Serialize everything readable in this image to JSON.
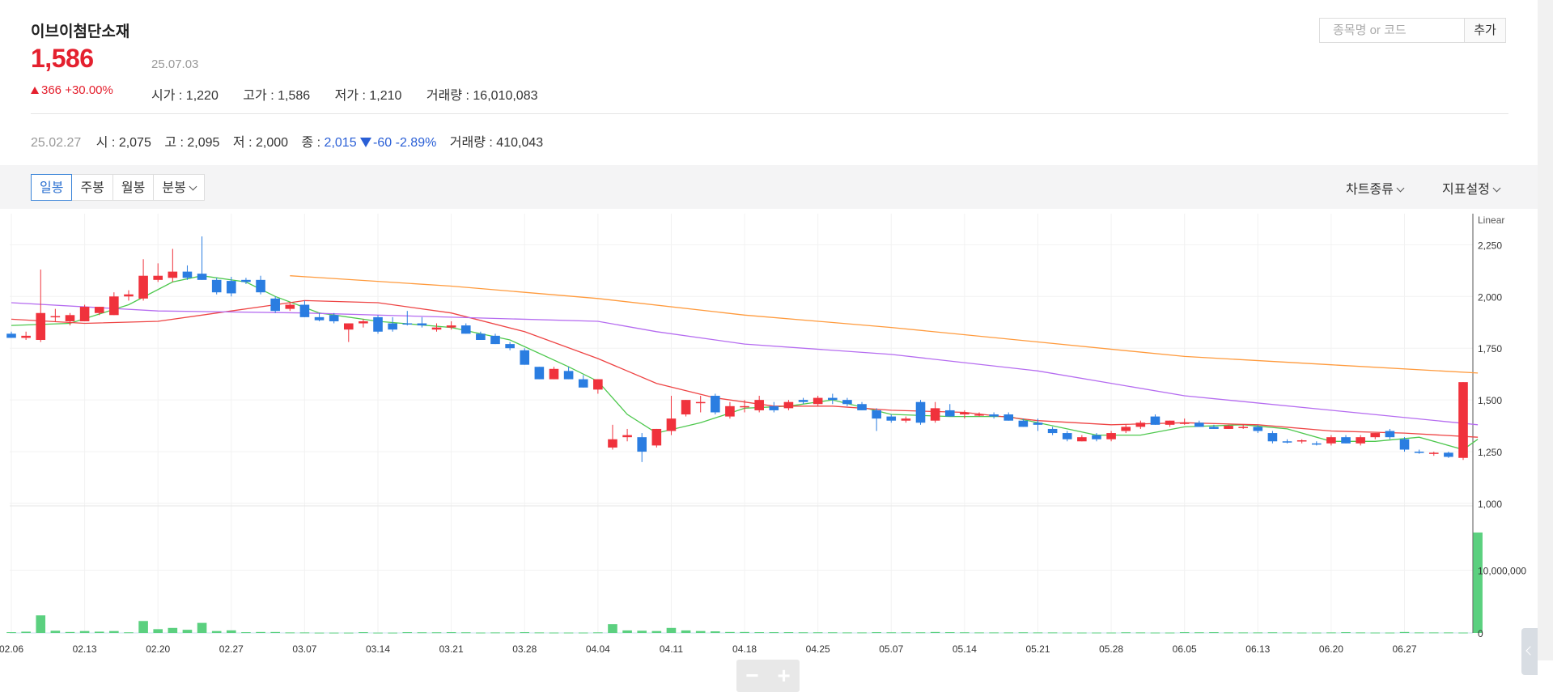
{
  "stock": {
    "name": "이브이첨단소재",
    "price": "1,586",
    "date": "25.07.03",
    "change_amount": "366",
    "change_pct": "+30.00%",
    "open_label": "시가",
    "open": "1,220",
    "high_label": "고가",
    "high": "1,586",
    "low_label": "저가",
    "low": "1,210",
    "volume_label": "거래량",
    "volume": "16,010,083"
  },
  "search": {
    "placeholder": "종목명 or 코드",
    "add_label": "추가"
  },
  "hover_info": {
    "date": "25.02.27",
    "open_label": "시",
    "open": "2,075",
    "high_label": "고",
    "high": "2,095",
    "low_label": "저",
    "low": "2,000",
    "close_label": "종",
    "close": "2,015",
    "change": "-60",
    "change_pct": "-2.89%",
    "volume_label": "거래량",
    "volume": "410,043"
  },
  "toolbar": {
    "tabs": [
      "일봉",
      "주봉",
      "월봉",
      "분봉"
    ],
    "active_tab": "일봉",
    "chart_type_label": "차트종류",
    "indicator_label": "지표설정"
  },
  "colors": {
    "up": "#f0323c",
    "down": "#2a7de1",
    "volume": "#5bd07f",
    "ma5": "#4ec84e",
    "ma20": "#ee4444",
    "ma60": "#b56cf0",
    "ma120": "#ff9a3c"
  },
  "chart_data": {
    "type": "candlestick",
    "scale_label": "Linear",
    "ylim": [
      1000,
      2400
    ],
    "y_ticks": [
      "2,250",
      "2,000",
      "1,750",
      "1,500",
      "1,250",
      "1,000"
    ],
    "volume_ticks": [
      "10,000,000",
      "0"
    ],
    "volume_max": 20000000,
    "x_tick_labels": [
      "02.06",
      "02.13",
      "02.20",
      "02.27",
      "03.07",
      "03.14",
      "03.21",
      "03.28",
      "04.04",
      "04.11",
      "04.18",
      "04.25",
      "05.07",
      "05.14",
      "05.21",
      "05.28",
      "06.05",
      "06.13",
      "06.20",
      "06.27"
    ],
    "candles": [
      {
        "d": "02.06",
        "o": 1820,
        "h": 1830,
        "l": 1800,
        "c": 1800
      },
      {
        "d": "02.07",
        "o": 1800,
        "h": 1830,
        "l": 1790,
        "c": 1810
      },
      {
        "d": "02.10",
        "o": 1790,
        "h": 2130,
        "l": 1780,
        "c": 1920
      },
      {
        "d": "02.11",
        "o": 1900,
        "h": 1940,
        "l": 1880,
        "c": 1905
      },
      {
        "d": "02.12",
        "o": 1880,
        "h": 1920,
        "l": 1860,
        "c": 1910
      },
      {
        "d": "02.13",
        "o": 1880,
        "h": 1960,
        "l": 1880,
        "c": 1950
      },
      {
        "d": "02.14",
        "o": 1920,
        "h": 1950,
        "l": 1910,
        "c": 1950
      },
      {
        "d": "02.17",
        "o": 1910,
        "h": 2020,
        "l": 1910,
        "c": 2000
      },
      {
        "d": "02.18",
        "o": 2000,
        "h": 2030,
        "l": 1980,
        "c": 2010
      },
      {
        "d": "02.19",
        "o": 1990,
        "h": 2180,
        "l": 1980,
        "c": 2100
      },
      {
        "d": "02.20",
        "o": 2080,
        "h": 2160,
        "l": 2070,
        "c": 2100
      },
      {
        "d": "02.21",
        "o": 2090,
        "h": 2230,
        "l": 2070,
        "c": 2120
      },
      {
        "d": "02.24",
        "o": 2120,
        "h": 2150,
        "l": 2080,
        "c": 2090
      },
      {
        "d": "02.25",
        "o": 2110,
        "h": 2290,
        "l": 2080,
        "c": 2080
      },
      {
        "d": "02.26",
        "o": 2080,
        "h": 2090,
        "l": 2010,
        "c": 2020
      },
      {
        "d": "02.27",
        "o": 2075,
        "h": 2095,
        "l": 2000,
        "c": 2015
      },
      {
        "d": "02.28",
        "o": 2080,
        "h": 2090,
        "l": 2060,
        "c": 2070
      },
      {
        "d": "03.04",
        "o": 2080,
        "h": 2100,
        "l": 2010,
        "c": 2020
      },
      {
        "d": "03.05",
        "o": 1990,
        "h": 2000,
        "l": 1920,
        "c": 1930
      },
      {
        "d": "03.06",
        "o": 1940,
        "h": 1970,
        "l": 1930,
        "c": 1960
      },
      {
        "d": "03.07",
        "o": 1960,
        "h": 1980,
        "l": 1900,
        "c": 1900
      },
      {
        "d": "03.10",
        "o": 1900,
        "h": 1920,
        "l": 1880,
        "c": 1885
      },
      {
        "d": "03.11",
        "o": 1910,
        "h": 1920,
        "l": 1870,
        "c": 1880
      },
      {
        "d": "03.12",
        "o": 1840,
        "h": 1870,
        "l": 1780,
        "c": 1870
      },
      {
        "d": "03.13",
        "o": 1870,
        "h": 1890,
        "l": 1850,
        "c": 1880
      },
      {
        "d": "03.14",
        "o": 1900,
        "h": 1910,
        "l": 1820,
        "c": 1830
      },
      {
        "d": "03.17",
        "o": 1870,
        "h": 1900,
        "l": 1830,
        "c": 1840
      },
      {
        "d": "03.18",
        "o": 1870,
        "h": 1930,
        "l": 1860,
        "c": 1865
      },
      {
        "d": "03.19",
        "o": 1870,
        "h": 1900,
        "l": 1850,
        "c": 1860
      },
      {
        "d": "03.20",
        "o": 1840,
        "h": 1870,
        "l": 1830,
        "c": 1850
      },
      {
        "d": "03.21",
        "o": 1850,
        "h": 1880,
        "l": 1840,
        "c": 1860
      },
      {
        "d": "03.24",
        "o": 1860,
        "h": 1870,
        "l": 1820,
        "c": 1820
      },
      {
        "d": "03.25",
        "o": 1820,
        "h": 1830,
        "l": 1790,
        "c": 1790
      },
      {
        "d": "03.26",
        "o": 1810,
        "h": 1820,
        "l": 1770,
        "c": 1770
      },
      {
        "d": "03.27",
        "o": 1770,
        "h": 1780,
        "l": 1740,
        "c": 1750
      },
      {
        "d": "03.28",
        "o": 1740,
        "h": 1750,
        "l": 1670,
        "c": 1670
      },
      {
        "d": "03.31",
        "o": 1660,
        "h": 1660,
        "l": 1600,
        "c": 1600
      },
      {
        "d": "04.01",
        "o": 1600,
        "h": 1660,
        "l": 1600,
        "c": 1650
      },
      {
        "d": "04.02",
        "o": 1640,
        "h": 1660,
        "l": 1600,
        "c": 1600
      },
      {
        "d": "04.03",
        "o": 1600,
        "h": 1620,
        "l": 1560,
        "c": 1560
      },
      {
        "d": "04.04",
        "o": 1550,
        "h": 1600,
        "l": 1530,
        "c": 1600
      },
      {
        "d": "04.07",
        "o": 1270,
        "h": 1380,
        "l": 1260,
        "c": 1310
      },
      {
        "d": "04.08",
        "o": 1320,
        "h": 1360,
        "l": 1300,
        "c": 1330
      },
      {
        "d": "04.09",
        "o": 1320,
        "h": 1340,
        "l": 1200,
        "c": 1250
      },
      {
        "d": "04.10",
        "o": 1280,
        "h": 1360,
        "l": 1270,
        "c": 1360
      },
      {
        "d": "04.11",
        "o": 1350,
        "h": 1520,
        "l": 1330,
        "c": 1410
      },
      {
        "d": "04.14",
        "o": 1430,
        "h": 1500,
        "l": 1420,
        "c": 1500
      },
      {
        "d": "04.15",
        "o": 1490,
        "h": 1520,
        "l": 1440,
        "c": 1490
      },
      {
        "d": "04.16",
        "o": 1520,
        "h": 1530,
        "l": 1430,
        "c": 1440
      },
      {
        "d": "04.17",
        "o": 1420,
        "h": 1490,
        "l": 1410,
        "c": 1470
      },
      {
        "d": "04.18",
        "o": 1470,
        "h": 1500,
        "l": 1440,
        "c": 1470
      },
      {
        "d": "04.21",
        "o": 1450,
        "h": 1520,
        "l": 1440,
        "c": 1500
      },
      {
        "d": "04.22",
        "o": 1470,
        "h": 1490,
        "l": 1440,
        "c": 1450
      },
      {
        "d": "04.23",
        "o": 1460,
        "h": 1500,
        "l": 1450,
        "c": 1490
      },
      {
        "d": "04.24",
        "o": 1500,
        "h": 1510,
        "l": 1480,
        "c": 1490
      },
      {
        "d": "04.25",
        "o": 1480,
        "h": 1520,
        "l": 1470,
        "c": 1510
      },
      {
        "d": "04.28",
        "o": 1510,
        "h": 1530,
        "l": 1480,
        "c": 1500
      },
      {
        "d": "04.29",
        "o": 1500,
        "h": 1510,
        "l": 1470,
        "c": 1480
      },
      {
        "d": "04.30",
        "o": 1480,
        "h": 1490,
        "l": 1450,
        "c": 1450
      },
      {
        "d": "05.02",
        "o": 1450,
        "h": 1460,
        "l": 1350,
        "c": 1410
      },
      {
        "d": "05.07",
        "o": 1420,
        "h": 1430,
        "l": 1390,
        "c": 1400
      },
      {
        "d": "05.08",
        "o": 1400,
        "h": 1420,
        "l": 1390,
        "c": 1410
      },
      {
        "d": "05.09",
        "o": 1490,
        "h": 1500,
        "l": 1380,
        "c": 1390
      },
      {
        "d": "05.12",
        "o": 1400,
        "h": 1490,
        "l": 1390,
        "c": 1460
      },
      {
        "d": "05.13",
        "o": 1450,
        "h": 1480,
        "l": 1420,
        "c": 1420
      },
      {
        "d": "05.14",
        "o": 1430,
        "h": 1450,
        "l": 1410,
        "c": 1440
      },
      {
        "d": "05.15",
        "o": 1430,
        "h": 1440,
        "l": 1420,
        "c": 1430
      },
      {
        "d": "05.16",
        "o": 1430,
        "h": 1440,
        "l": 1410,
        "c": 1420
      },
      {
        "d": "05.19",
        "o": 1430,
        "h": 1440,
        "l": 1400,
        "c": 1400
      },
      {
        "d": "05.20",
        "o": 1400,
        "h": 1410,
        "l": 1370,
        "c": 1370
      },
      {
        "d": "05.21",
        "o": 1390,
        "h": 1410,
        "l": 1350,
        "c": 1380
      },
      {
        "d": "05.22",
        "o": 1360,
        "h": 1370,
        "l": 1330,
        "c": 1340
      },
      {
        "d": "05.23",
        "o": 1340,
        "h": 1350,
        "l": 1300,
        "c": 1310
      },
      {
        "d": "05.26",
        "o": 1300,
        "h": 1330,
        "l": 1300,
        "c": 1320
      },
      {
        "d": "05.27",
        "o": 1330,
        "h": 1340,
        "l": 1300,
        "c": 1310
      },
      {
        "d": "05.28",
        "o": 1310,
        "h": 1350,
        "l": 1300,
        "c": 1340
      },
      {
        "d": "05.29",
        "o": 1350,
        "h": 1380,
        "l": 1340,
        "c": 1370
      },
      {
        "d": "05.30",
        "o": 1370,
        "h": 1400,
        "l": 1360,
        "c": 1390
      },
      {
        "d": "06.02",
        "o": 1420,
        "h": 1430,
        "l": 1380,
        "c": 1380
      },
      {
        "d": "06.04",
        "o": 1380,
        "h": 1400,
        "l": 1370,
        "c": 1400
      },
      {
        "d": "06.05",
        "o": 1390,
        "h": 1410,
        "l": 1380,
        "c": 1390
      },
      {
        "d": "06.09",
        "o": 1390,
        "h": 1400,
        "l": 1370,
        "c": 1370
      },
      {
        "d": "06.10",
        "o": 1370,
        "h": 1380,
        "l": 1360,
        "c": 1360
      },
      {
        "d": "06.11",
        "o": 1360,
        "h": 1380,
        "l": 1360,
        "c": 1375
      },
      {
        "d": "06.12",
        "o": 1370,
        "h": 1380,
        "l": 1360,
        "c": 1370
      },
      {
        "d": "06.13",
        "o": 1370,
        "h": 1380,
        "l": 1340,
        "c": 1350
      },
      {
        "d": "06.16",
        "o": 1340,
        "h": 1350,
        "l": 1290,
        "c": 1300
      },
      {
        "d": "06.17",
        "o": 1300,
        "h": 1310,
        "l": 1290,
        "c": 1295
      },
      {
        "d": "06.18",
        "o": 1300,
        "h": 1310,
        "l": 1290,
        "c": 1305
      },
      {
        "d": "06.19",
        "o": 1290,
        "h": 1300,
        "l": 1280,
        "c": 1285
      },
      {
        "d": "06.20",
        "o": 1290,
        "h": 1330,
        "l": 1280,
        "c": 1320
      },
      {
        "d": "06.23",
        "o": 1320,
        "h": 1330,
        "l": 1290,
        "c": 1290
      },
      {
        "d": "06.24",
        "o": 1290,
        "h": 1330,
        "l": 1280,
        "c": 1320
      },
      {
        "d": "06.25",
        "o": 1320,
        "h": 1340,
        "l": 1310,
        "c": 1340
      },
      {
        "d": "06.26",
        "o": 1350,
        "h": 1360,
        "l": 1310,
        "c": 1320
      },
      {
        "d": "06.27",
        "o": 1310,
        "h": 1320,
        "l": 1250,
        "c": 1260
      },
      {
        "d": "06.30",
        "o": 1250,
        "h": 1260,
        "l": 1240,
        "c": 1245
      },
      {
        "d": "07.01",
        "o": 1240,
        "h": 1250,
        "l": 1230,
        "c": 1245
      },
      {
        "d": "07.02",
        "o": 1245,
        "h": 1250,
        "l": 1220,
        "c": 1225
      },
      {
        "d": "07.03",
        "o": 1220,
        "h": 1586,
        "l": 1210,
        "c": 1586
      }
    ],
    "volumes": [
      120000,
      200000,
      2800000,
      350000,
      150000,
      300000,
      200000,
      300000,
      100000,
      1900000,
      600000,
      800000,
      500000,
      1600000,
      300000,
      410043,
      120000,
      150000,
      150000,
      80000,
      80000,
      50000,
      50000,
      50000,
      120000,
      50000,
      50000,
      120000,
      100000,
      100000,
      120000,
      100000,
      60000,
      80000,
      80000,
      120000,
      80000,
      60000,
      60000,
      60000,
      90000,
      1400000,
      400000,
      350000,
      300000,
      800000,
      400000,
      300000,
      250000,
      150000,
      150000,
      120000,
      120000,
      120000,
      100000,
      100000,
      100000,
      80000,
      80000,
      120000,
      100000,
      100000,
      100000,
      150000,
      120000,
      100000,
      80000,
      80000,
      80000,
      100000,
      80000,
      80000,
      60000,
      60000,
      60000,
      60000,
      100000,
      80000,
      60000,
      60000,
      120000,
      100000,
      120000,
      80000,
      80000,
      80000,
      100000,
      80000,
      60000,
      60000,
      80000,
      120000,
      80000,
      60000,
      60000,
      150000,
      80000,
      80000,
      80000,
      60000,
      16010083
    ],
    "ma_lines": [
      {
        "name": "MA5",
        "points": [
          [
            0,
            1860
          ],
          [
            4,
            1870
          ],
          [
            8,
            1960
          ],
          [
            11,
            2070
          ],
          [
            13,
            2100
          ],
          [
            16,
            2070
          ],
          [
            18,
            2000
          ],
          [
            21,
            1920
          ],
          [
            25,
            1880
          ],
          [
            30,
            1850
          ],
          [
            34,
            1790
          ],
          [
            38,
            1660
          ],
          [
            40,
            1590
          ],
          [
            42,
            1430
          ],
          [
            44,
            1340
          ],
          [
            47,
            1390
          ],
          [
            50,
            1460
          ],
          [
            53,
            1470
          ],
          [
            56,
            1500
          ],
          [
            60,
            1430
          ],
          [
            64,
            1420
          ],
          [
            68,
            1420
          ],
          [
            72,
            1360
          ],
          [
            74,
            1330
          ],
          [
            77,
            1330
          ],
          [
            80,
            1370
          ],
          [
            84,
            1380
          ],
          [
            87,
            1360
          ],
          [
            90,
            1300
          ],
          [
            93,
            1300
          ],
          [
            96,
            1320
          ],
          [
            99,
            1260
          ],
          [
            100,
            1310
          ]
        ]
      },
      {
        "name": "MA20",
        "points": [
          [
            0,
            1890
          ],
          [
            5,
            1870
          ],
          [
            10,
            1880
          ],
          [
            15,
            1930
          ],
          [
            20,
            1980
          ],
          [
            25,
            1970
          ],
          [
            30,
            1920
          ],
          [
            35,
            1830
          ],
          [
            40,
            1700
          ],
          [
            44,
            1580
          ],
          [
            48,
            1510
          ],
          [
            52,
            1470
          ],
          [
            56,
            1470
          ],
          [
            60,
            1450
          ],
          [
            65,
            1440
          ],
          [
            70,
            1400
          ],
          [
            75,
            1380
          ],
          [
            80,
            1390
          ],
          [
            85,
            1380
          ],
          [
            90,
            1350
          ],
          [
            95,
            1340
          ],
          [
            100,
            1320
          ]
        ]
      },
      {
        "name": "MA60",
        "points": [
          [
            0,
            1970
          ],
          [
            10,
            1930
          ],
          [
            20,
            1920
          ],
          [
            30,
            1900
          ],
          [
            40,
            1880
          ],
          [
            44,
            1830
          ],
          [
            50,
            1770
          ],
          [
            60,
            1720
          ],
          [
            70,
            1640
          ],
          [
            80,
            1520
          ],
          [
            90,
            1450
          ],
          [
            100,
            1380
          ]
        ]
      },
      {
        "name": "MA120",
        "points": [
          [
            19,
            2100
          ],
          [
            30,
            2050
          ],
          [
            40,
            1990
          ],
          [
            50,
            1910
          ],
          [
            60,
            1850
          ],
          [
            70,
            1780
          ],
          [
            80,
            1710
          ],
          [
            90,
            1670
          ],
          [
            100,
            1630
          ]
        ]
      }
    ]
  }
}
